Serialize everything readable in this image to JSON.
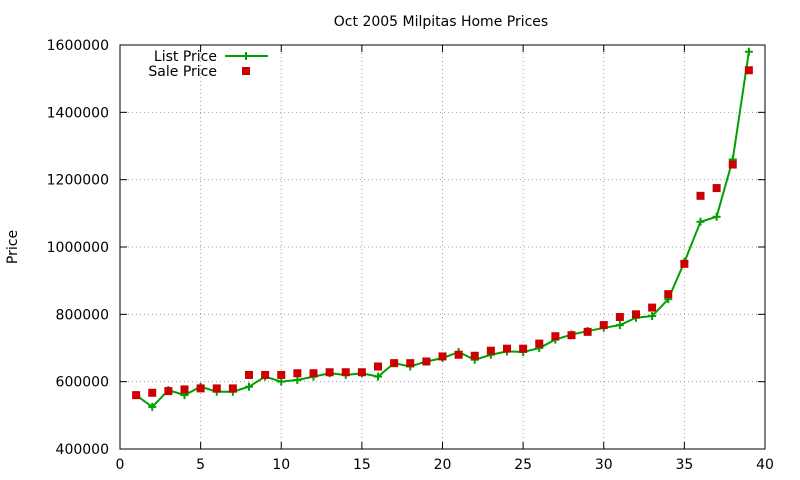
{
  "chart_data": {
    "type": "line",
    "title": "Oct 2005 Milpitas Home Prices",
    "xlabel": "",
    "ylabel": "Price",
    "xlim": [
      0,
      40
    ],
    "ylim": [
      400000,
      1600000
    ],
    "x_ticks": [
      0,
      5,
      10,
      15,
      20,
      25,
      30,
      35,
      40
    ],
    "y_ticks": [
      400000,
      600000,
      800000,
      1000000,
      1200000,
      1400000,
      1600000
    ],
    "grid": true,
    "legend_position": "top-left",
    "series": [
      {
        "name": "List Price",
        "style": "line with plus markers",
        "color": "#00a000",
        "x": [
          1,
          2,
          3,
          4,
          5,
          6,
          7,
          8,
          9,
          10,
          11,
          12,
          13,
          14,
          15,
          16,
          17,
          18,
          19,
          20,
          21,
          22,
          23,
          24,
          25,
          26,
          27,
          28,
          29,
          30,
          31,
          32,
          33,
          34,
          35,
          36,
          37,
          38,
          39
        ],
        "values": [
          560000,
          525000,
          575000,
          560000,
          585000,
          570000,
          570000,
          585000,
          615000,
          600000,
          605000,
          615000,
          625000,
          620000,
          625000,
          615000,
          655000,
          645000,
          660000,
          670000,
          688000,
          665000,
          680000,
          690000,
          688000,
          700000,
          725000,
          740000,
          750000,
          760000,
          768000,
          790000,
          795000,
          845000,
          955000,
          1075000,
          1090000,
          1260000,
          1580000
        ]
      },
      {
        "name": "Sale Price",
        "style": "square markers",
        "color": "#cc0000",
        "x": [
          1,
          2,
          3,
          4,
          5,
          6,
          7,
          8,
          9,
          10,
          11,
          12,
          13,
          14,
          15,
          16,
          17,
          18,
          19,
          20,
          21,
          22,
          23,
          24,
          25,
          26,
          27,
          28,
          29,
          30,
          31,
          32,
          33,
          34,
          35,
          36,
          37,
          38,
          39
        ],
        "values": [
          560000,
          567000,
          572000,
          577000,
          580000,
          580000,
          580000,
          620000,
          620000,
          620000,
          625000,
          625000,
          628000,
          628000,
          628000,
          645000,
          655000,
          655000,
          660000,
          675000,
          680000,
          677000,
          692000,
          698000,
          698000,
          713000,
          735000,
          738000,
          748000,
          768000,
          792000,
          800000,
          820000,
          860000,
          950000,
          1152000,
          1175000,
          1245000,
          1525000
        ]
      }
    ]
  }
}
